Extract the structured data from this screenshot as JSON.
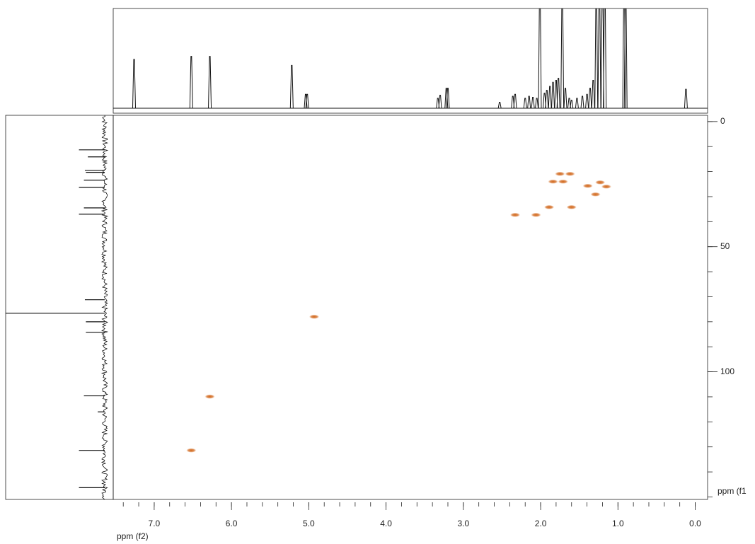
{
  "chart_data": {
    "type": "scatter",
    "x_label": "ppm (f2)",
    "y_label": "ppm (f1",
    "xlim": [
      7.53,
      -0.16
    ],
    "ylim": [
      -2.5,
      151
    ],
    "xticks": [
      {
        "value": 7,
        "label": "7.0"
      },
      {
        "value": 6,
        "label": "6.0"
      },
      {
        "value": 5,
        "label": "5.0"
      },
      {
        "value": 4,
        "label": "4.0"
      },
      {
        "value": 3,
        "label": "3.0"
      },
      {
        "value": 2,
        "label": "2.0"
      },
      {
        "value": 1,
        "label": "1.0"
      },
      {
        "value": 0,
        "label": "0.0"
      }
    ],
    "yticks": [
      0,
      50,
      100
    ],
    "x_minor_step": 0.2,
    "y_minor_step": 10,
    "color": "#d2691e",
    "x": [
      1.75,
      1.62,
      1.84,
      1.71,
      1.39,
      1.15,
      1.23,
      1.29,
      1.89,
      1.6,
      2.33,
      2.06,
      4.93,
      6.28,
      6.52
    ],
    "y": [
      20.9,
      20.9,
      24.0,
      24.0,
      25.7,
      26.0,
      24.3,
      29.1,
      34.2,
      34.2,
      37.3,
      37.3,
      78.0,
      109.9,
      131.4
    ],
    "top_projection": {
      "ylim": [
        -5,
        100
      ],
      "ppm": [
        7.26,
        6.52,
        6.28,
        5.22,
        5.04,
        5.02,
        3.33,
        3.3,
        3.22,
        3.2,
        2.53,
        2.36,
        2.33,
        2.2,
        2.15,
        2.1,
        2.05,
        2.01,
        1.95,
        1.92,
        1.88,
        1.84,
        1.8,
        1.77,
        1.72,
        1.68,
        1.63,
        1.6,
        1.53,
        1.46,
        1.4,
        1.36,
        1.32,
        1.28,
        1.24,
        1.2,
        1.17,
        0.92,
        0.9,
        0.12
      ],
      "intensity": [
        49,
        52,
        52,
        43,
        14,
        14,
        10,
        13,
        20,
        20,
        6,
        12,
        14,
        10,
        12,
        11,
        10,
        120,
        15,
        18,
        22,
        26,
        28,
        30,
        120,
        20,
        10,
        8,
        10,
        12,
        14,
        20,
        28,
        120,
        120,
        120,
        120,
        120,
        120,
        19
      ]
    },
    "left_projection": {
      "xlim": [
        -8.6,
        100
      ],
      "ppm": [
        11.3,
        14.1,
        19.5,
        20.3,
        23.4,
        26.3,
        34.5,
        37.0,
        71.2,
        76.6,
        80.0,
        84.2,
        109.6,
        116.0,
        131.4,
        146.3
      ],
      "intensity": [
        26,
        17,
        20,
        19,
        21,
        26,
        21,
        26,
        20,
        100,
        19,
        19,
        21,
        7,
        26,
        26
      ]
    }
  }
}
